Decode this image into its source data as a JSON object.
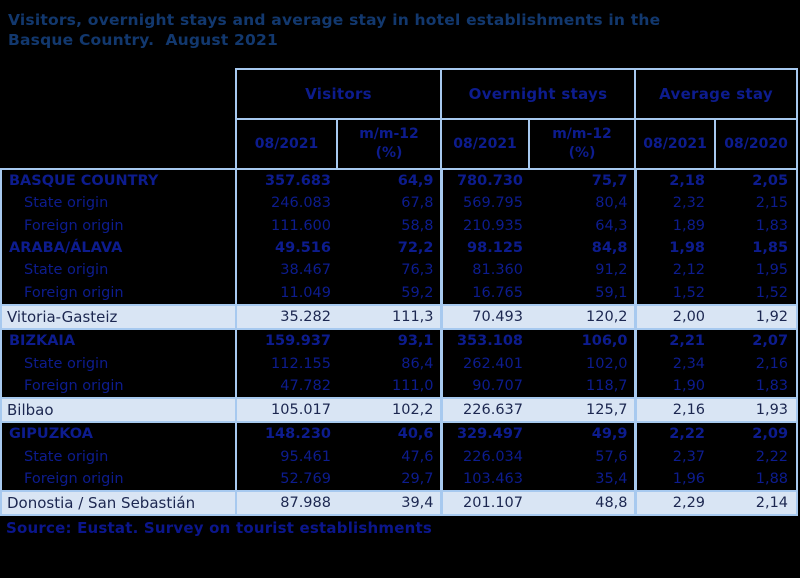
{
  "title": "Visitors, overnight stays and average stay in hotel establishments in the\nBasque Country.  August 2021",
  "source": "Source: Eustat. Survey on tourist establishments",
  "colors": {
    "page_background": "#000000",
    "table_border": "#a7c9ef",
    "title_text": "#12386e",
    "table_text": "#0d1c8e",
    "highlight_row_background": "#d9e5f4",
    "highlight_row_text": "#1c2750",
    "source_text": "#0b168c"
  },
  "table": {
    "groups": [
      {
        "label": "Visitors",
        "columns": [
          "08/2021",
          "m/m-12\n(%)"
        ]
      },
      {
        "label": "Overnight stays",
        "columns": [
          "08/2021",
          "m/m-12\n(%)"
        ]
      },
      {
        "label": "Average stay",
        "columns": [
          "08/2021",
          "08/2020"
        ]
      }
    ],
    "rows": [
      {
        "label": "BASQUE COUNTRY",
        "style": "region",
        "values": [
          "357.683",
          "64,9",
          "780.730",
          "75,7",
          "2,18",
          "2,05"
        ]
      },
      {
        "label": "State origin",
        "style": "origin",
        "values": [
          "246.083",
          "67,8",
          "569.795",
          "80,4",
          "2,32",
          "2,15"
        ]
      },
      {
        "label": "Foreign origin",
        "style": "origin",
        "values": [
          "111.600",
          "58,8",
          "210.935",
          "64,3",
          "1,89",
          "1,83"
        ]
      },
      {
        "label": "ARABA/ÁLAVA",
        "style": "region",
        "values": [
          "49.516",
          "72,2",
          "98.125",
          "84,8",
          "1,98",
          "1,85"
        ]
      },
      {
        "label": "State origin",
        "style": "origin",
        "values": [
          "38.467",
          "76,3",
          "81.360",
          "91,2",
          "2,12",
          "1,95"
        ]
      },
      {
        "label": "Foreign origin",
        "style": "origin",
        "values": [
          "11.049",
          "59,2",
          "16.765",
          "59,1",
          "1,52",
          "1,52"
        ]
      },
      {
        "label": "Vitoria-Gasteiz",
        "style": "city",
        "values": [
          "35.282",
          "111,3",
          "70.493",
          "120,2",
          "2,00",
          "1,92"
        ]
      },
      {
        "label": "BIZKAIA",
        "style": "region",
        "values": [
          "159.937",
          "93,1",
          "353.108",
          "106,0",
          "2,21",
          "2,07"
        ]
      },
      {
        "label": "State origin",
        "style": "origin",
        "values": [
          "112.155",
          "86,4",
          "262.401",
          "102,0",
          "2,34",
          "2,16"
        ]
      },
      {
        "label": "Foreign origin",
        "style": "origin",
        "values": [
          "47.782",
          "111,0",
          "90.707",
          "118,7",
          "1,90",
          "1,83"
        ]
      },
      {
        "label": "Bilbao",
        "style": "city",
        "values": [
          "105.017",
          "102,2",
          "226.637",
          "125,7",
          "2,16",
          "1,93"
        ]
      },
      {
        "label": "GIPUZKOA",
        "style": "region",
        "values": [
          "148.230",
          "40,6",
          "329.497",
          "49,9",
          "2,22",
          "2,09"
        ]
      },
      {
        "label": "State origin",
        "style": "origin",
        "values": [
          "95.461",
          "47,6",
          "226.034",
          "57,6",
          "2,37",
          "2,22"
        ]
      },
      {
        "label": "Foreign origin",
        "style": "origin",
        "values": [
          "52.769",
          "29,7",
          "103.463",
          "35,4",
          "1,96",
          "1,88"
        ]
      },
      {
        "label": "Donostia / San Sebastián",
        "style": "city",
        "values": [
          "87.988",
          "39,4",
          "201.107",
          "48,8",
          "2,29",
          "2,14"
        ]
      }
    ]
  }
}
